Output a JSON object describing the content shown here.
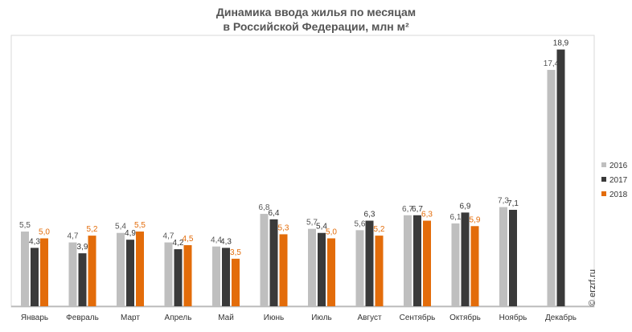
{
  "chart_data": {
    "type": "bar",
    "title_line1": "Динамика ввода жилья по месяцам",
    "title_line2": "в Российской Федерации, млн м²",
    "categories": [
      "Январь",
      "Февраль",
      "Март",
      "Апрель",
      "Май",
      "Июнь",
      "Июль",
      "Август",
      "Сентябрь",
      "Октябрь",
      "Ноябрь",
      "Декабрь"
    ],
    "series": [
      {
        "name": "2016",
        "color": "#bfbfbf",
        "label_color": "#555555",
        "labels": [
          "5,5",
          "4,7",
          "5,4",
          "4,7",
          "4,4",
          "6,8",
          "5,7",
          "5,6",
          "6,7",
          "6,1",
          "7,3",
          "17,4"
        ],
        "values": [
          5.5,
          4.7,
          5.4,
          4.7,
          4.4,
          6.8,
          5.7,
          5.6,
          6.7,
          6.1,
          7.3,
          17.4
        ]
      },
      {
        "name": "2017",
        "color": "#3a3a3a",
        "label_color": "#333333",
        "labels": [
          "4,3",
          "3,9",
          "4,9",
          "4,2",
          "4,3",
          "6,4",
          "5,4",
          "6,3",
          "6,7",
          "6,9",
          "7,1",
          "18,9"
        ],
        "values": [
          4.3,
          3.9,
          4.9,
          4.2,
          4.3,
          6.4,
          5.4,
          6.3,
          6.7,
          6.9,
          7.1,
          18.9
        ]
      },
      {
        "name": "2018",
        "color": "#e36c0a",
        "label_color": "#e36c0a",
        "labels": [
          "5,0",
          "5,2",
          "5,5",
          "4,5",
          "3,5",
          "5,3",
          "5,0",
          "5,2",
          "6,3",
          "5,9",
          null,
          null
        ],
        "values": [
          5.0,
          5.2,
          5.5,
          4.5,
          3.5,
          5.3,
          5.0,
          5.2,
          6.3,
          5.9,
          null,
          null
        ]
      }
    ],
    "ylim": [
      0,
      20
    ],
    "legend_position": "right",
    "grid": false
  },
  "watermark": "© erzrf.ru"
}
